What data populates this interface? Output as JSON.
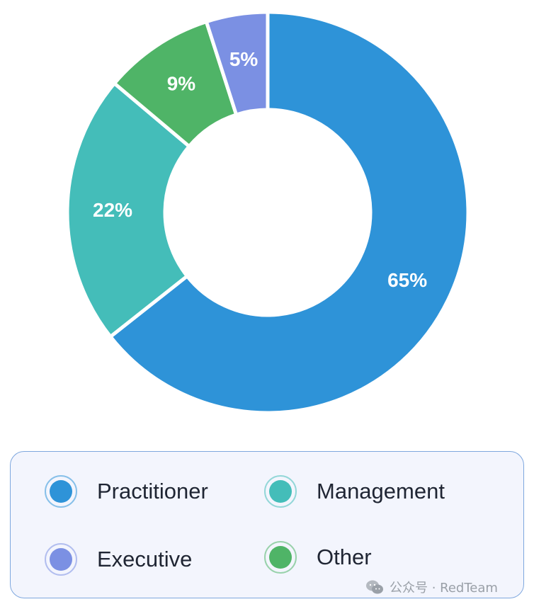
{
  "chart_data": {
    "type": "pie",
    "donut": true,
    "categories": [
      "Practitioner",
      "Management",
      "Executive",
      "Other"
    ],
    "values": [
      65,
      22,
      5,
      9
    ],
    "value_labels": [
      "65%",
      "22%",
      "5%",
      "9%"
    ],
    "colors": [
      "#2e93d8",
      "#44bdb9",
      "#7b90e3",
      "#4fb467"
    ],
    "slice_order_clockwise_from_top": [
      "Practitioner",
      "Management",
      "Other",
      "Executive"
    ],
    "legend_placement": "bottom"
  },
  "legend": {
    "items": [
      {
        "label": "Practitioner",
        "color": "#2e93d8",
        "icon": "circle-icon"
      },
      {
        "label": "Management",
        "color": "#44bdb9",
        "icon": "circle-icon"
      },
      {
        "label": "Executive",
        "color": "#7b90e3",
        "icon": "circle-icon"
      },
      {
        "label": "Other",
        "color": "#4fb467",
        "icon": "circle-icon"
      }
    ]
  },
  "watermark": {
    "text": "公众号 · RedTeam",
    "icon": "wechat-icon"
  }
}
